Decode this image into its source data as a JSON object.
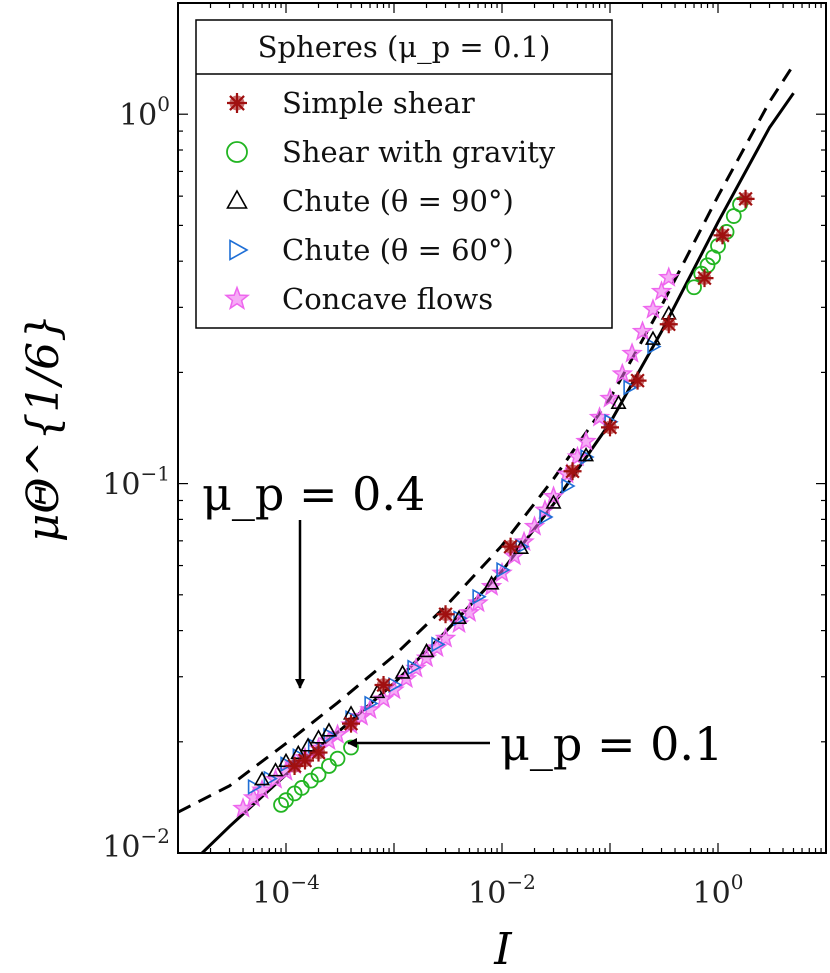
{
  "chart_data": {
    "type": "scatter",
    "title": "",
    "xlabel": "I",
    "ylabel": "μΘ^{1/6}",
    "xscale": "log",
    "yscale": "log",
    "xlim": [
      1e-05,
      10
    ],
    "ylim": [
      0.01,
      2
    ],
    "x_ticks": [
      {
        "value": 0.0001,
        "base": "10",
        "exp": "−4"
      },
      {
        "value": 0.01,
        "base": "10",
        "exp": "−2"
      },
      {
        "value": 1,
        "base": "10",
        "exp": "0"
      }
    ],
    "y_ticks": [
      {
        "value": 0.01,
        "base": "10",
        "exp": "−2"
      },
      {
        "value": 0.1,
        "base": "10",
        "exp": "−1"
      },
      {
        "value": 1,
        "base": "10",
        "exp": "0"
      }
    ],
    "legend": {
      "title": "Spheres (μ_p = 0.1)",
      "placement": "top-left",
      "entries": [
        {
          "label": "Simple shear",
          "marker": "asterisk",
          "color": "#a01010"
        },
        {
          "label": "Shear with gravity",
          "marker": "circle",
          "color": "#22b522"
        },
        {
          "label": "Chute (θ = 90°)",
          "marker": "triangle-up",
          "color": "#000000"
        },
        {
          "label": "Chute (θ = 60°)",
          "marker": "triangle-right",
          "color": "#1f6fd6"
        },
        {
          "label": "Concave flows",
          "marker": "star",
          "color": "#ee66ee"
        }
      ]
    },
    "series": [
      {
        "name": "μ_p = 0.1 fit",
        "kind": "line",
        "style": "solid",
        "color": "#000000",
        "x": [
          1.5e-05,
          3e-05,
          0.0001,
          0.0003,
          0.001,
          0.003,
          0.01,
          0.03,
          0.1,
          0.3,
          1,
          3,
          5
        ],
        "y": [
          0.0097,
          0.0118,
          0.0163,
          0.0212,
          0.0288,
          0.0397,
          0.058,
          0.088,
          0.146,
          0.258,
          0.51,
          0.92,
          1.14
        ]
      },
      {
        "name": "μ_p = 0.4 fit",
        "kind": "line",
        "style": "dashed",
        "color": "#000000",
        "x": [
          1e-05,
          3e-05,
          0.0001,
          0.0003,
          0.001,
          0.003,
          0.01,
          0.03,
          0.1,
          0.3,
          1,
          3,
          5
        ],
        "y": [
          0.0129,
          0.0152,
          0.0198,
          0.0255,
          0.0342,
          0.0465,
          0.068,
          0.103,
          0.17,
          0.303,
          0.6,
          1.08,
          1.36
        ]
      },
      {
        "name": "Concave flows",
        "marker": "star",
        "color": "#ee66ee",
        "x": [
          4e-05,
          5e-05,
          6e-05,
          8e-05,
          0.0001,
          0.00012,
          0.00015,
          0.0002,
          0.00025,
          0.0003,
          0.0004,
          0.0005,
          0.0006,
          0.0008,
          0.001,
          0.0013,
          0.0016,
          0.002,
          0.0025,
          0.003,
          0.004,
          0.005,
          0.006,
          0.008,
          0.01,
          0.013,
          0.016,
          0.02,
          0.025,
          0.03,
          0.04,
          0.05,
          0.06,
          0.08,
          0.1,
          0.13,
          0.16,
          0.2,
          0.25,
          0.3,
          0.35
        ],
        "y": [
          0.0132,
          0.0141,
          0.0148,
          0.0158,
          0.0166,
          0.0173,
          0.0181,
          0.0192,
          0.0201,
          0.0209,
          0.0222,
          0.0234,
          0.0244,
          0.0261,
          0.0276,
          0.0296,
          0.0316,
          0.0337,
          0.0359,
          0.0381,
          0.0417,
          0.0447,
          0.0475,
          0.0526,
          0.0572,
          0.0636,
          0.0695,
          0.0765,
          0.0847,
          0.0922,
          0.106,
          0.118,
          0.13,
          0.151,
          0.17,
          0.198,
          0.225,
          0.258,
          0.296,
          0.331,
          0.361
        ]
      },
      {
        "name": "Chute (θ = 60°)",
        "marker": "triangle-right",
        "color": "#1f6fd6",
        "x": [
          5e-05,
          7e-05,
          0.0001,
          0.00013,
          0.00018,
          0.00025,
          0.0004,
          0.0006,
          0.001,
          0.0015,
          0.0025,
          0.004,
          0.006,
          0.01,
          0.015,
          0.025,
          0.04,
          0.06,
          0.1,
          0.15,
          0.25
        ],
        "y": [
          0.0151,
          0.0159,
          0.0174,
          0.0183,
          0.0195,
          0.0208,
          0.0232,
          0.0254,
          0.0285,
          0.0318,
          0.0367,
          0.0432,
          0.0494,
          0.0584,
          0.0675,
          0.0812,
          0.0985,
          0.118,
          0.147,
          0.182,
          0.235
        ]
      },
      {
        "name": "Chute (θ = 90°)",
        "marker": "triangle-up",
        "color": "#000000",
        "x": [
          6e-05,
          8e-05,
          0.0001,
          0.00013,
          0.00016,
          0.0002,
          0.00025,
          0.0004,
          0.0007,
          0.0012,
          0.002,
          0.004,
          0.008,
          0.015,
          0.03,
          0.06,
          0.12,
          0.25,
          0.35
        ],
        "y": [
          0.0158,
          0.0167,
          0.0177,
          0.0186,
          0.0195,
          0.0205,
          0.0214,
          0.0238,
          0.0272,
          0.0307,
          0.0351,
          0.0432,
          0.0535,
          0.0668,
          0.0886,
          0.119,
          0.165,
          0.246,
          0.288
        ]
      },
      {
        "name": "Shear with gravity",
        "marker": "circle",
        "color": "#22b522",
        "x": [
          9e-05,
          0.0001,
          0.00012,
          0.00014,
          0.00017,
          0.0002,
          0.00025,
          0.0003,
          0.0004,
          0.6,
          0.7,
          0.8,
          0.9,
          1.0,
          1.2,
          1.4,
          1.6
        ],
        "y": [
          0.0135,
          0.0139,
          0.0145,
          0.015,
          0.0157,
          0.0163,
          0.0172,
          0.018,
          0.0193,
          0.34,
          0.37,
          0.39,
          0.41,
          0.44,
          0.48,
          0.53,
          0.57
        ]
      },
      {
        "name": "Simple shear",
        "marker": "asterisk",
        "color": "#a01010",
        "x": [
          0.00012,
          0.00015,
          0.0002,
          0.0004,
          0.0008,
          0.003,
          0.012,
          0.045,
          0.1,
          0.18,
          0.35,
          0.75,
          1.1,
          1.8
        ],
        "y": [
          0.0172,
          0.0178,
          0.0187,
          0.0224,
          0.0285,
          0.0443,
          0.0675,
          0.108,
          0.142,
          0.19,
          0.27,
          0.36,
          0.47,
          0.59
        ]
      }
    ],
    "annotations": [
      {
        "text": "μ_p = 0.4",
        "points_to": "dashed curve"
      },
      {
        "text": "μ_p = 0.1",
        "points_to": "solid curve"
      }
    ]
  }
}
